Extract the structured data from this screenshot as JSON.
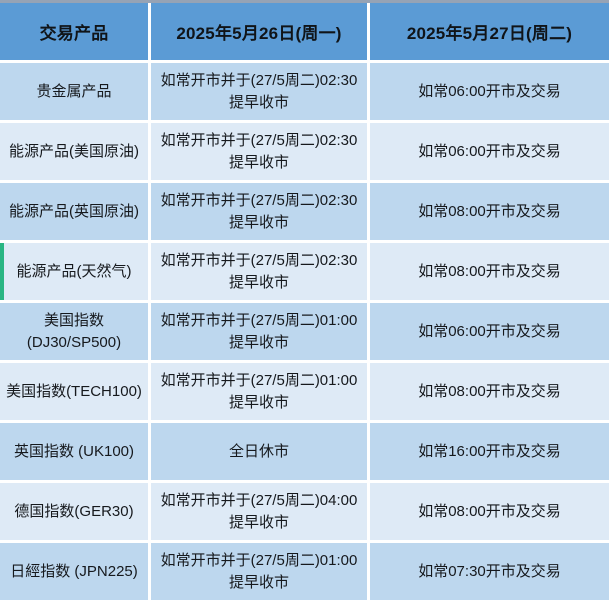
{
  "colors": {
    "header_bg": "#5b9bd5",
    "header_text": "#101418",
    "row_odd": "#bdd7ee",
    "row_even": "#deeaf6",
    "body_text": "#16191d",
    "accent_green": "#29b583",
    "top_border": "#96a3b5"
  },
  "table": {
    "columns": {
      "product": "交易产品",
      "may26": "2025年5月26日(周一)",
      "may27": "2025年5月27日(周二)"
    },
    "rows": [
      {
        "product_line1": "贵金属产品",
        "product_line2": "",
        "may26_line1": "如常开市并于(27/5周二)02:30",
        "may26_line2": "提早收市",
        "may27": "如常06:00开市及交易"
      },
      {
        "product_line1": "能源产品(美国原油)",
        "product_line2": "",
        "may26_line1": "如常开市并于(27/5周二)02:30",
        "may26_line2": "提早收市",
        "may27": "如常06:00开市及交易"
      },
      {
        "product_line1": "能源产品(英国原油)",
        "product_line2": "",
        "may26_line1": "如常开市并于(27/5周二)02:30",
        "may26_line2": "提早收市",
        "may27": "如常08:00开市及交易"
      },
      {
        "product_line1": "能源产品(天然气)",
        "product_line2": "",
        "may26_line1": "如常开市并于(27/5周二)02:30",
        "may26_line2": "提早收市",
        "may27": "如常08:00开市及交易"
      },
      {
        "product_line1": "美国指数",
        "product_line2": "(DJ30/SP500)",
        "may26_line1": "如常开市并于(27/5周二)01:00",
        "may26_line2": "提早收市",
        "may27": "如常06:00开市及交易"
      },
      {
        "product_line1": "美国指数(TECH100)",
        "product_line2": "",
        "may26_line1": "如常开市并于(27/5周二)01:00",
        "may26_line2": "提早收市",
        "may27": "如常08:00开市及交易"
      },
      {
        "product_line1": "英国指数 (UK100)",
        "product_line2": "",
        "may26_line1": "全日休市",
        "may26_line2": "",
        "may27": "如常16:00开市及交易"
      },
      {
        "product_line1": "德国指数(GER30)",
        "product_line2": "",
        "may26_line1": "如常开市并于(27/5周二)04:00",
        "may26_line2": "提早收市",
        "may27": "如常08:00开市及交易"
      },
      {
        "product_line1": "日經指数 (JPN225)",
        "product_line2": "",
        "may26_line1": "如常开市并于(27/5周二)01:00",
        "may26_line2": "提早收市",
        "may27": "如常07:30开市及交易"
      }
    ]
  }
}
